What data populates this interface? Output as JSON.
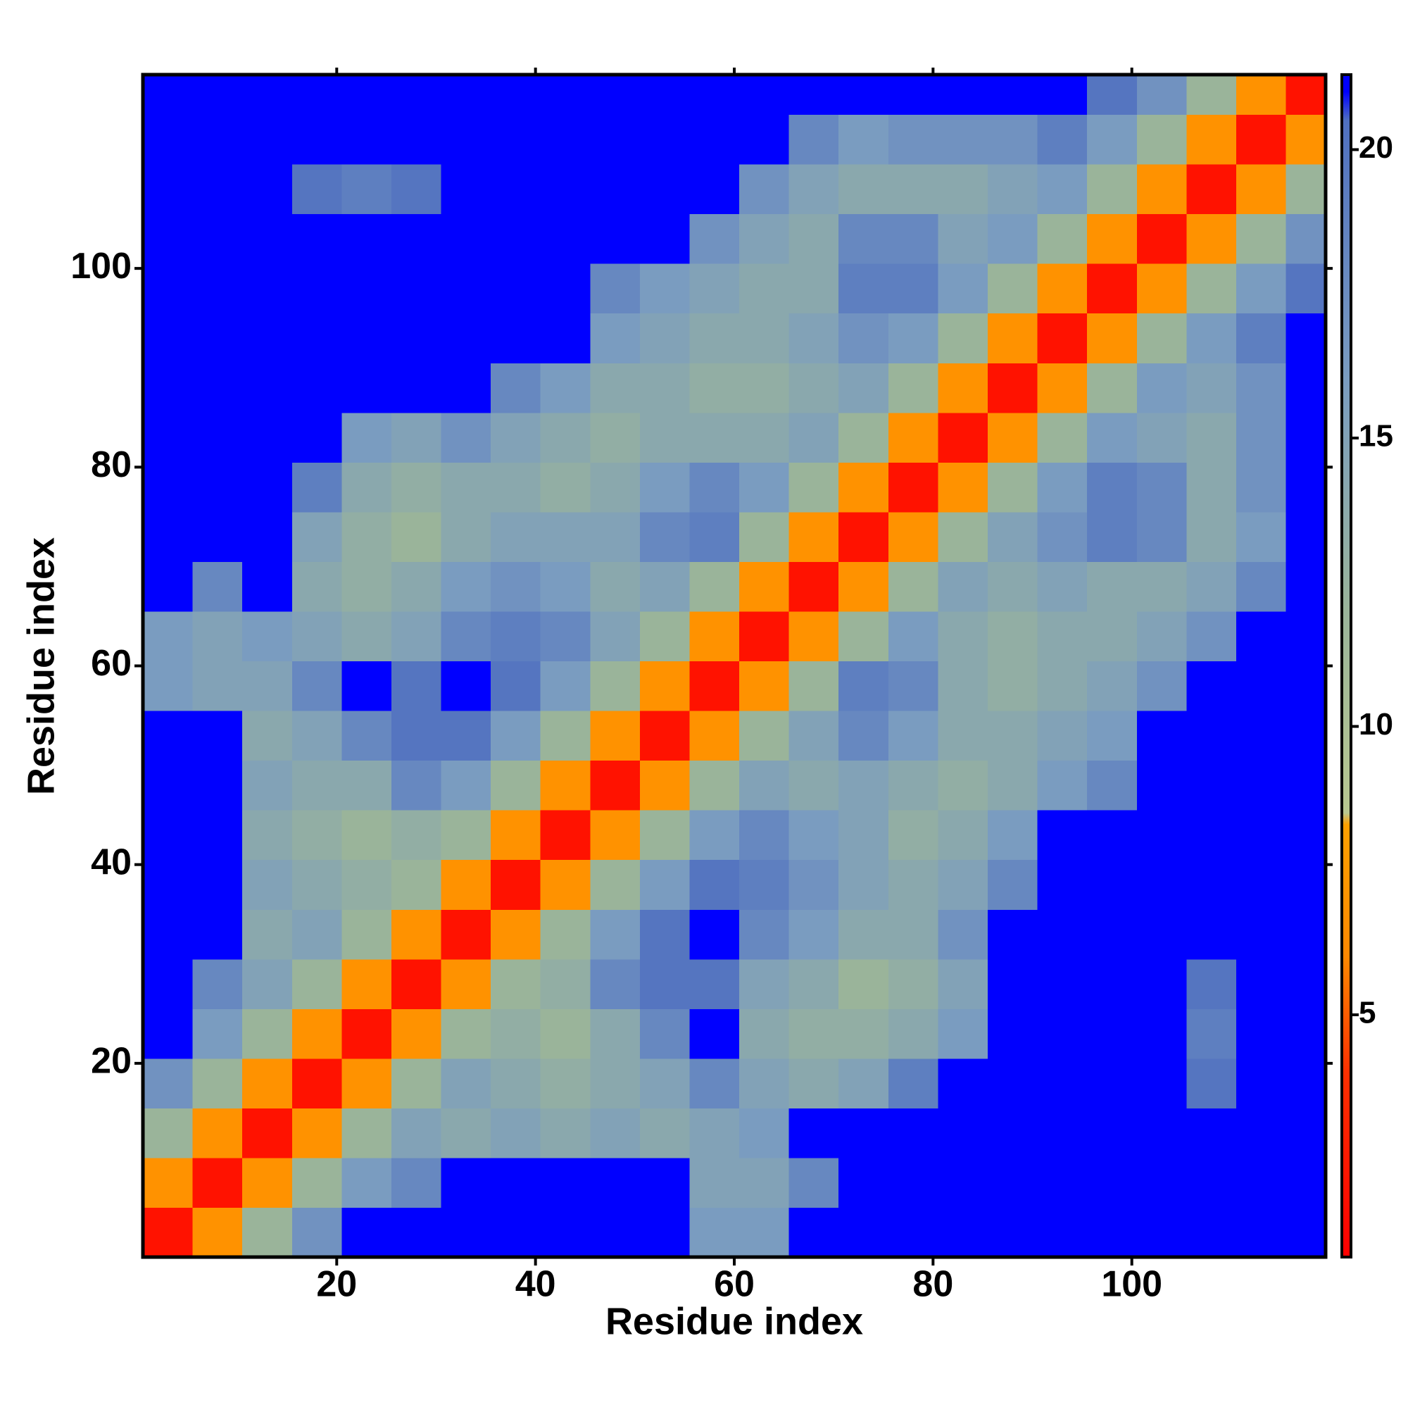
{
  "chart_data": {
    "type": "heatmap",
    "x_label": "Residue index",
    "y_label": "Residue index",
    "xlim": [
      0.5,
      119.5
    ],
    "ylim": [
      0.5,
      119.5
    ],
    "xticks": [
      20,
      40,
      60,
      80,
      100
    ],
    "yticks": [
      20,
      40,
      60,
      80,
      100
    ],
    "zlim": [
      0.8,
      21.3
    ],
    "zticks": [
      5,
      10,
      15,
      20
    ],
    "colorscale": [
      {
        "value": 0.8,
        "color": "#ff0000"
      },
      {
        "value": 4,
        "color": "#ff3000"
      },
      {
        "value": 6,
        "color": "#ff8800"
      },
      {
        "value": 8.3,
        "color": "#ffa000"
      },
      {
        "value": 8.5,
        "color": "#b8c890"
      },
      {
        "value": 12,
        "color": "#9ab49a"
      },
      {
        "value": 16,
        "color": "#7a9cc0"
      },
      {
        "value": 20.5,
        "color": "#5070c0"
      },
      {
        "value": 21,
        "color": "#0000ff"
      },
      {
        "value": 21.3,
        "color": "#0000ff"
      }
    ],
    "x": [
      3,
      8,
      13,
      18,
      23,
      28,
      33,
      38,
      43,
      48,
      53,
      58,
      63,
      68,
      73,
      78,
      83,
      88,
      93,
      98,
      103,
      108,
      113,
      118
    ],
    "y": [
      3,
      8,
      13,
      18,
      23,
      28,
      33,
      38,
      43,
      48,
      53,
      58,
      63,
      68,
      73,
      78,
      83,
      88,
      93,
      98,
      103,
      108,
      113,
      118
    ],
    "z": [
      [
        2,
        7,
        12,
        17,
        21,
        21,
        21,
        21,
        21,
        21,
        21,
        16,
        16,
        21,
        21,
        21,
        21,
        21,
        21,
        21,
        21,
        21,
        21,
        21
      ],
      [
        7,
        2,
        7,
        12,
        16,
        18,
        21,
        21,
        21,
        21,
        21,
        15,
        15,
        18,
        21,
        21,
        21,
        21,
        21,
        21,
        21,
        21,
        21,
        21
      ],
      [
        12,
        7,
        2,
        7,
        12,
        15,
        14,
        15,
        14,
        15,
        14,
        15,
        16,
        21,
        21,
        21,
        21,
        21,
        21,
        21,
        21,
        21,
        21,
        21
      ],
      [
        17,
        12,
        7,
        2,
        7,
        12,
        15,
        14,
        13,
        14,
        15,
        18,
        15,
        14,
        15,
        19,
        21,
        21,
        21,
        21,
        21,
        20,
        21,
        21
      ],
      [
        21,
        16,
        12,
        7,
        2,
        7,
        12,
        13,
        12,
        14,
        18,
        21,
        14,
        13,
        13,
        14,
        16,
        21,
        21,
        21,
        21,
        19,
        21,
        21
      ],
      [
        21,
        18,
        15,
        12,
        7,
        2,
        7,
        12,
        13,
        18,
        20,
        20,
        15,
        14,
        12,
        13,
        15,
        21,
        21,
        21,
        21,
        20,
        21,
        21
      ],
      [
        21,
        21,
        14,
        15,
        12,
        7,
        2,
        7,
        12,
        16,
        20,
        21,
        18,
        16,
        14,
        14,
        17,
        21,
        21,
        21,
        21,
        21,
        21,
        21
      ],
      [
        21,
        21,
        15,
        14,
        13,
        12,
        7,
        2,
        7,
        12,
        16,
        20,
        19,
        17,
        15,
        14,
        15,
        18,
        21,
        21,
        21,
        21,
        21,
        21
      ],
      [
        21,
        21,
        14,
        13,
        12,
        13,
        12,
        7,
        2,
        7,
        12,
        16,
        18,
        16,
        15,
        13,
        14,
        16,
        21,
        21,
        21,
        21,
        21,
        21
      ],
      [
        21,
        21,
        15,
        14,
        14,
        18,
        16,
        12,
        7,
        2,
        7,
        12,
        15,
        14,
        15,
        14,
        13,
        14,
        16,
        18,
        21,
        21,
        21,
        21
      ],
      [
        21,
        21,
        14,
        15,
        18,
        20,
        20,
        16,
        12,
        7,
        2,
        7,
        12,
        15,
        18,
        16,
        14,
        14,
        15,
        16,
        21,
        21,
        21,
        21
      ],
      [
        16,
        15,
        15,
        18,
        21,
        20,
        21,
        20,
        16,
        12,
        7,
        2,
        7,
        12,
        19,
        18,
        14,
        13,
        14,
        15,
        17,
        21,
        21,
        21
      ],
      [
        16,
        15,
        16,
        15,
        14,
        15,
        18,
        19,
        18,
        15,
        12,
        7,
        2,
        7,
        12,
        16,
        14,
        13,
        14,
        14,
        15,
        17,
        21,
        21
      ],
      [
        21,
        18,
        21,
        14,
        13,
        14,
        16,
        17,
        16,
        14,
        15,
        12,
        7,
        2,
        7,
        12,
        15,
        14,
        15,
        14,
        14,
        15,
        18,
        21
      ],
      [
        21,
        21,
        21,
        15,
        13,
        12,
        14,
        15,
        15,
        15,
        18,
        19,
        12,
        7,
        2,
        7,
        12,
        15,
        17,
        19,
        18,
        14,
        16,
        21
      ],
      [
        21,
        21,
        21,
        19,
        14,
        13,
        14,
        14,
        13,
        14,
        16,
        18,
        16,
        12,
        7,
        2,
        7,
        12,
        16,
        19,
        18,
        14,
        17,
        21
      ],
      [
        21,
        21,
        21,
        21,
        16,
        15,
        17,
        15,
        14,
        13,
        14,
        14,
        14,
        15,
        12,
        7,
        2,
        7,
        12,
        16,
        15,
        14,
        17,
        21
      ],
      [
        21,
        21,
        21,
        21,
        21,
        21,
        21,
        18,
        16,
        14,
        14,
        13,
        13,
        14,
        15,
        12,
        7,
        2,
        7,
        12,
        16,
        15,
        17,
        21
      ],
      [
        21,
        21,
        21,
        21,
        21,
        21,
        21,
        21,
        21,
        16,
        15,
        14,
        14,
        15,
        17,
        16,
        12,
        7,
        2,
        7,
        12,
        16,
        19,
        21
      ],
      [
        21,
        21,
        21,
        21,
        21,
        21,
        21,
        21,
        21,
        18,
        16,
        15,
        14,
        14,
        19,
        19,
        16,
        12,
        7,
        2,
        7,
        12,
        16,
        20
      ],
      [
        21,
        21,
        21,
        21,
        21,
        21,
        21,
        21,
        21,
        21,
        21,
        17,
        15,
        14,
        18,
        18,
        15,
        16,
        12,
        7,
        2,
        7,
        12,
        17
      ],
      [
        21,
        21,
        21,
        20,
        19,
        20,
        21,
        21,
        21,
        21,
        21,
        21,
        17,
        15,
        14,
        14,
        14,
        15,
        16,
        12,
        7,
        2,
        7,
        12
      ],
      [
        21,
        21,
        21,
        21,
        21,
        21,
        21,
        21,
        21,
        21,
        21,
        21,
        21,
        18,
        16,
        17,
        17,
        17,
        19,
        16,
        12,
        7,
        2,
        7
      ],
      [
        21,
        21,
        21,
        21,
        21,
        21,
        21,
        21,
        21,
        21,
        21,
        21,
        21,
        21,
        21,
        21,
        21,
        21,
        21,
        20,
        17,
        12,
        7,
        2
      ]
    ]
  }
}
